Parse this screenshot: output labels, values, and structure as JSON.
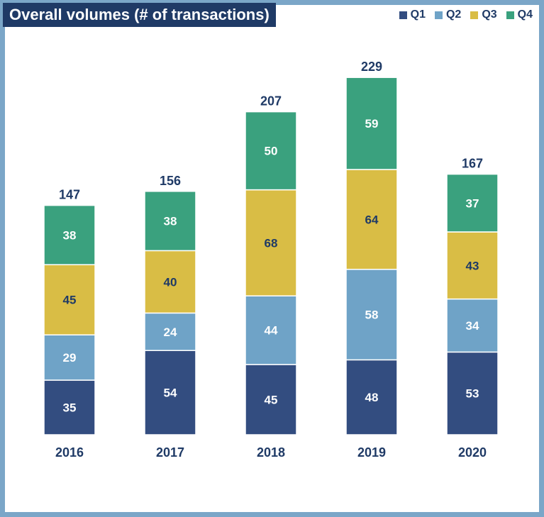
{
  "chart_data": {
    "type": "bar",
    "stacked": true,
    "title": "Overall volumes (# of transactions)",
    "categories": [
      "2016",
      "2017",
      "2018",
      "2019",
      "2020"
    ],
    "series": [
      {
        "name": "Q1",
        "values": [
          35,
          54,
          45,
          48,
          53
        ],
        "color": "#334d80",
        "label_color": "#ffffff"
      },
      {
        "name": "Q2",
        "values": [
          29,
          24,
          44,
          58,
          34
        ],
        "color": "#6fa3c7",
        "label_color": "#ffffff"
      },
      {
        "name": "Q3",
        "values": [
          45,
          40,
          68,
          64,
          43
        ],
        "color": "#d9bd45",
        "label_color": "#1f3a66"
      },
      {
        "name": "Q4",
        "values": [
          38,
          38,
          50,
          59,
          37
        ],
        "color": "#3aa17e",
        "label_color": "#ffffff"
      }
    ],
    "totals": [
      147,
      156,
      207,
      229,
      167
    ],
    "legend_position": "top-right",
    "grid": false,
    "ylim": [
      0,
      229
    ]
  }
}
